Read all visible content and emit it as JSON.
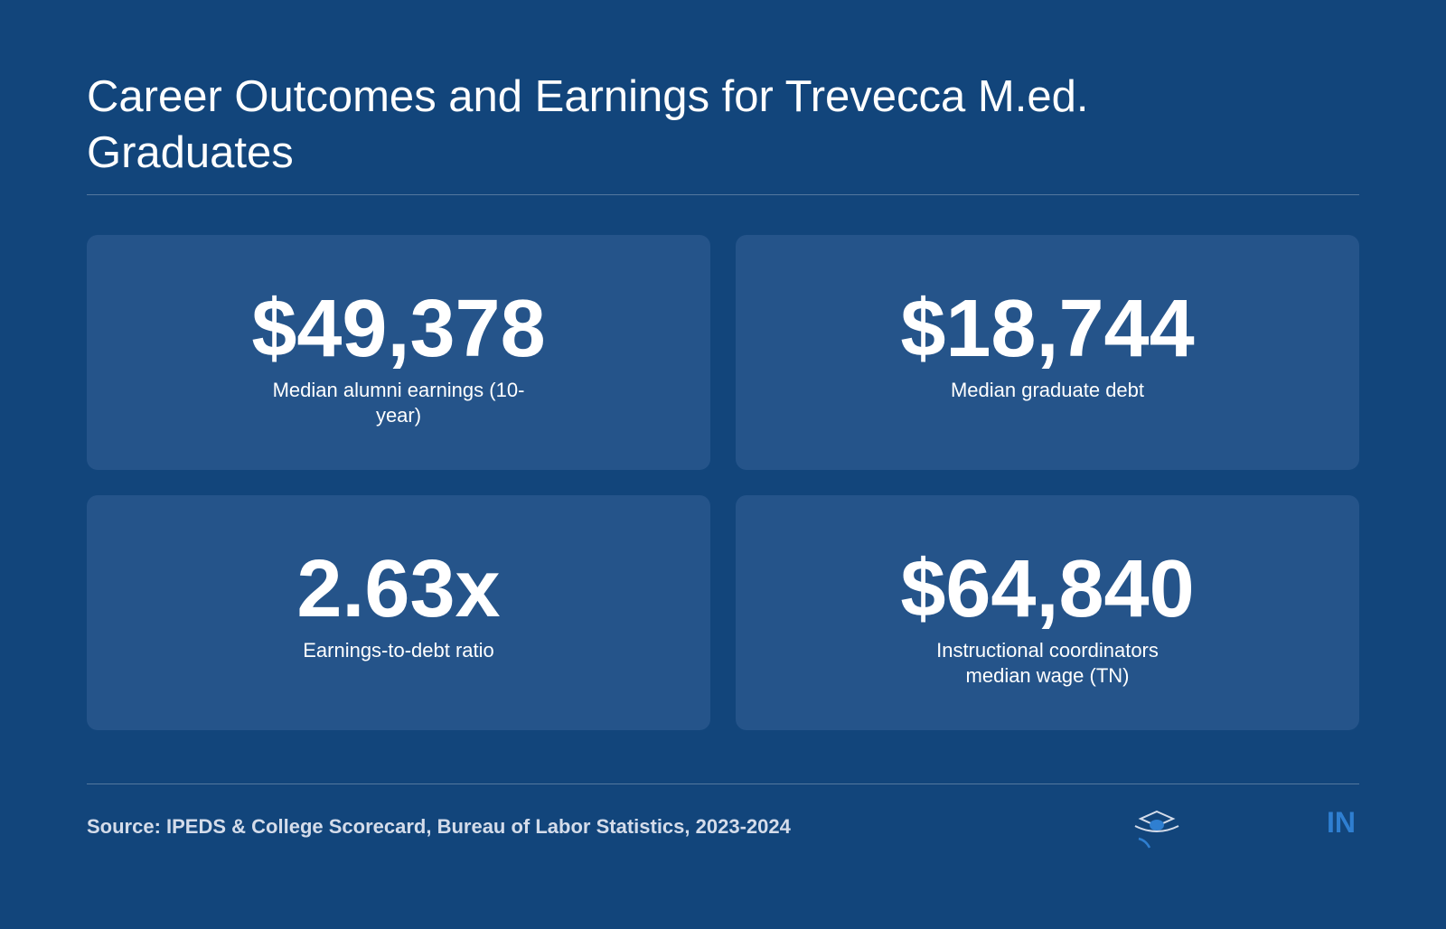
{
  "header": {
    "title": "Career Outcomes and Earnings for Trevecca M.ed. Graduates"
  },
  "stats": [
    {
      "value": "$49,378",
      "label": "Median alumni earnings (10-year)"
    },
    {
      "value": "$18,744",
      "label": "Median graduate debt"
    },
    {
      "value": "2.63x",
      "label": "Earnings-to-debt ratio"
    },
    {
      "value": "$64,840",
      "label": "Instructional coordinators median wage (TN)"
    }
  ],
  "footer": {
    "source": "Source: IPEDS & College Scorecard, Bureau of Labor Statistics, 2023-2024",
    "brand_text": "IN",
    "logo_icon": "graduation-cap-icon"
  },
  "colors": {
    "background": "#12457b",
    "card": "#25548a",
    "text": "#ffffff",
    "source_text": "#d4dcea",
    "brand_accent": "#2f7fd1"
  }
}
